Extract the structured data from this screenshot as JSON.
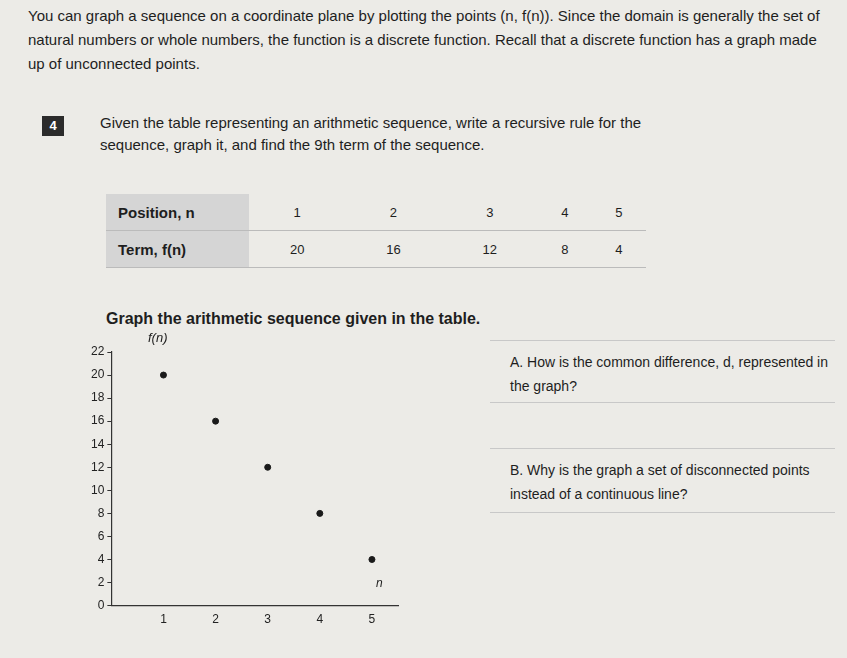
{
  "intro": "You can graph a sequence on a coordinate plane by plotting the points (n, f(n)). Since the domain is generally the set of natural numbers or whole numbers, the function is a discrete function. Recall that a discrete function has a graph made up of unconnected points.",
  "problem": {
    "number": "4",
    "text": "Given the table representing an arithmetic sequence, write a recursive rule for the sequence, graph it, and find the 9th term of the sequence."
  },
  "table": {
    "rows": [
      [
        "Position, n",
        "1",
        "2",
        "3",
        "4",
        "5"
      ],
      [
        "Term, f(n)",
        "20",
        "16",
        "12",
        "8",
        "4"
      ]
    ]
  },
  "graph_title": "Graph the arithmetic sequence given in the table.",
  "chart_data": {
    "type": "scatter",
    "x_label": "n",
    "y_label": "f(n)",
    "x": [
      1,
      2,
      3,
      4,
      5
    ],
    "values": [
      20,
      16,
      12,
      8,
      4
    ],
    "color": "#1a1a1a",
    "xlim": [
      0,
      5.5
    ],
    "xticks": [
      1,
      2,
      3,
      4,
      5
    ],
    "ylim": [
      0,
      22
    ],
    "yticks": [
      0,
      2,
      4,
      6,
      8,
      10,
      12,
      14,
      16,
      18,
      20,
      22
    ],
    "grid": false,
    "marker": "circle"
  },
  "questions": [
    "A. How is the common difference, d, represented in the graph?",
    "B. Why is the graph a set of disconnected points instead of a continuous line?"
  ]
}
